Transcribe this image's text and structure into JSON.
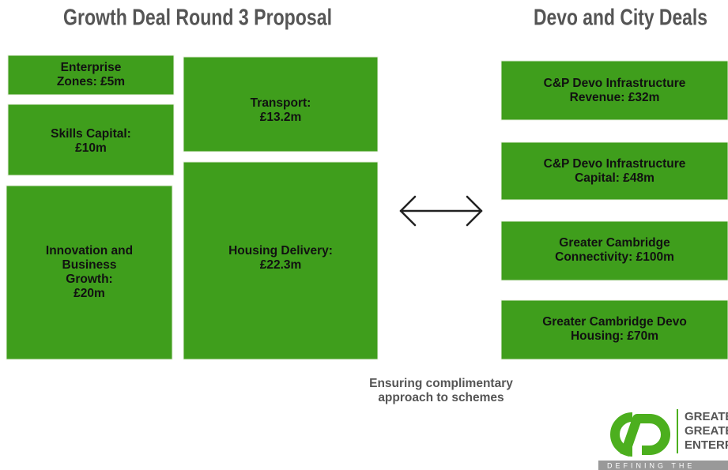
{
  "left": {
    "title": "Growth Deal Round 3 Proposal",
    "boxes": [
      {
        "lines": [
          "Enterprise",
          "Zones: £5m"
        ]
      },
      {
        "lines": [
          "Skills Capital:",
          "£10m"
        ]
      },
      {
        "lines": [
          "Innovation and",
          "Business",
          "Growth:",
          "£20m"
        ]
      },
      {
        "lines": [
          "Transport:",
          "£13.2m"
        ]
      },
      {
        "lines": [
          "Housing Delivery:",
          "£22.3m"
        ]
      }
    ]
  },
  "right": {
    "title": "Devo and City Deals",
    "boxes": [
      {
        "lines": [
          "C&P Devo Infrastructure",
          "Revenue: £32m"
        ]
      },
      {
        "lines": [
          "C&P Devo Infrastructure",
          "Capital: £48m"
        ]
      },
      {
        "lines": [
          "Greater Cambridge",
          "Connectivity: £100m"
        ]
      },
      {
        "lines": [
          "Greater Cambridge Devo",
          "Housing: £70m"
        ]
      }
    ]
  },
  "caption": {
    "lines": [
      "Ensuring complimentary",
      "approach to schemes"
    ]
  },
  "logo": {
    "lines": [
      "GREATER",
      "GREATER",
      "ENTERPR"
    ],
    "tagline": "DEFINING THE"
  }
}
